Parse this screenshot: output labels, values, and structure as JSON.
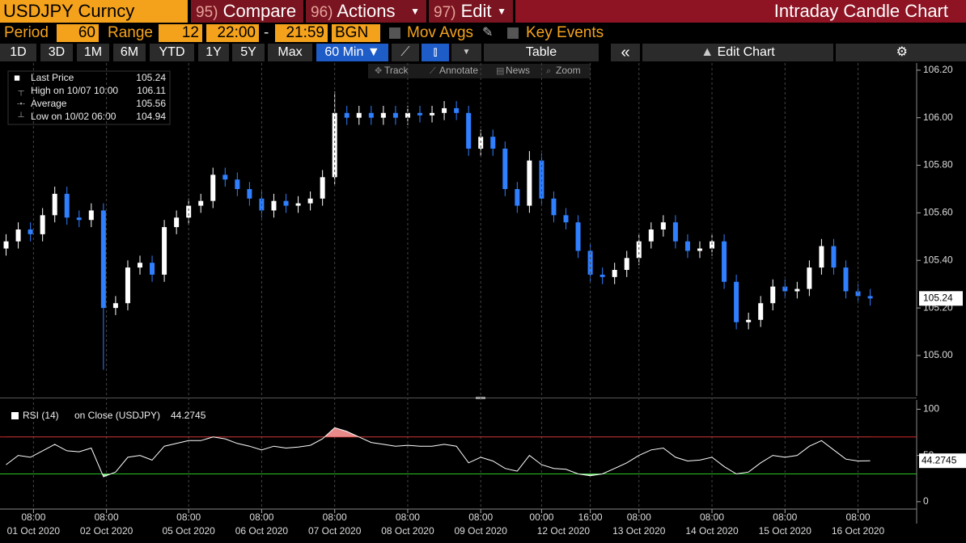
{
  "toolbar": {
    "security": "USDJPY Curncy",
    "buttons": [
      {
        "num": "95)",
        "label": "Compare"
      },
      {
        "num": "96)",
        "label": "Actions"
      },
      {
        "num": "97)",
        "label": "Edit"
      }
    ],
    "title": "Intraday Candle Chart"
  },
  "settings": {
    "period_label": "Period",
    "period": "60",
    "range_label": "Range",
    "range": "12",
    "start": "22:00",
    "dash": "-",
    "end": "21:59",
    "bgn": "BGN",
    "mov_avgs": "Mov Avgs",
    "key_events": "Key Events"
  },
  "ranges": [
    "1D",
    "3D",
    "1M",
    "6M",
    "YTD",
    "1Y",
    "5Y",
    "Max"
  ],
  "interval": "60 Min",
  "table": "Table",
  "edit_chart": "Edit Chart",
  "tools": [
    "Track",
    "Annotate",
    "News",
    "Zoom"
  ],
  "chart_data": [
    {
      "type": "candlestick",
      "legend": [
        {
          "label": "Last Price",
          "value": 105.24
        },
        {
          "label": "High on 10/07 10:00",
          "value": 106.11
        },
        {
          "label": "Average",
          "value": 105.56
        },
        {
          "label": "Low on 10/02 06:00",
          "value": 104.94
        }
      ],
      "up_color": "#ffffff",
      "down_color": "#2f7fff",
      "x": [
        2,
        6,
        10,
        14,
        18,
        22,
        26,
        30,
        34,
        38,
        42,
        46,
        50,
        54,
        58,
        62,
        66,
        70,
        74,
        78,
        82,
        86,
        90,
        94,
        98,
        102,
        106,
        110,
        114,
        118,
        122,
        126,
        130,
        134,
        138,
        142,
        146,
        150,
        154,
        158,
        162,
        166,
        170,
        174,
        178,
        182,
        186,
        190,
        194,
        198,
        202,
        206,
        210,
        214,
        218,
        222,
        226,
        230,
        234,
        238,
        242,
        246,
        250,
        254,
        258,
        262,
        266,
        270,
        274,
        278,
        282,
        286
      ],
      "open": [
        105.45,
        105.48,
        105.53,
        105.51,
        105.59,
        105.68,
        105.58,
        105.57,
        105.61,
        105.2,
        105.22,
        105.37,
        105.39,
        105.34,
        105.54,
        105.58,
        105.63,
        105.65,
        105.76,
        105.74,
        105.7,
        105.66,
        105.61,
        105.65,
        105.63,
        105.64,
        105.66,
        105.75,
        106.02,
        106.0,
        106.02,
        106.0,
        106.02,
        106.0,
        106.02,
        106.01,
        106.02,
        106.04,
        106.02,
        105.87,
        105.92,
        105.87,
        105.7,
        105.63,
        105.82,
        105.66,
        105.59,
        105.56,
        105.44,
        105.34,
        105.33,
        105.36,
        105.41,
        105.48,
        105.53,
        105.56,
        105.48,
        105.44,
        105.45,
        105.48,
        105.31,
        105.14,
        105.15,
        105.22,
        105.29,
        105.27,
        105.28,
        105.37,
        105.46,
        105.37,
        105.27,
        105.25
      ],
      "high": [
        105.51,
        105.56,
        105.56,
        105.62,
        105.71,
        105.71,
        105.61,
        105.64,
        105.64,
        105.25,
        105.4,
        105.42,
        105.42,
        105.57,
        105.61,
        105.66,
        105.68,
        105.79,
        105.79,
        105.77,
        105.73,
        105.69,
        105.68,
        105.68,
        105.67,
        105.69,
        105.78,
        106.11,
        106.05,
        106.05,
        106.05,
        106.05,
        106.05,
        106.05,
        106.05,
        106.05,
        106.07,
        106.07,
        106.05,
        105.95,
        105.95,
        105.9,
        105.73,
        105.86,
        105.85,
        105.69,
        105.62,
        105.59,
        105.47,
        105.37,
        105.39,
        105.44,
        105.51,
        105.56,
        105.59,
        105.59,
        105.51,
        105.48,
        105.51,
        105.51,
        105.34,
        105.18,
        105.25,
        105.32,
        105.32,
        105.31,
        105.4,
        105.49,
        105.49,
        105.4,
        105.3,
        105.28
      ],
      "low": [
        105.42,
        105.45,
        105.48,
        105.48,
        105.56,
        105.55,
        105.54,
        105.54,
        104.94,
        105.17,
        105.19,
        105.34,
        105.31,
        105.31,
        105.51,
        105.55,
        105.6,
        105.62,
        105.71,
        105.67,
        105.63,
        105.58,
        105.58,
        105.6,
        105.6,
        105.61,
        105.63,
        105.72,
        105.97,
        105.97,
        105.97,
        105.97,
        105.97,
        105.97,
        105.98,
        105.98,
        105.99,
        105.99,
        105.84,
        105.84,
        105.84,
        105.67,
        105.6,
        105.6,
        105.63,
        105.56,
        105.53,
        105.41,
        105.31,
        105.3,
        105.3,
        105.33,
        105.38,
        105.45,
        105.5,
        105.45,
        105.41,
        105.41,
        105.42,
        105.28,
        105.11,
        105.11,
        105.12,
        105.19,
        105.24,
        105.24,
        105.25,
        105.34,
        105.34,
        105.24,
        105.22,
        105.21
      ],
      "close": [
        105.48,
        105.53,
        105.51,
        105.59,
        105.68,
        105.58,
        105.57,
        105.61,
        105.2,
        105.22,
        105.37,
        105.39,
        105.34,
        105.54,
        105.58,
        105.63,
        105.65,
        105.76,
        105.74,
        105.7,
        105.66,
        105.61,
        105.65,
        105.63,
        105.64,
        105.66,
        105.75,
        106.02,
        106.0,
        106.02,
        106.0,
        106.02,
        106.0,
        106.02,
        106.01,
        106.02,
        106.04,
        106.02,
        105.87,
        105.92,
        105.87,
        105.7,
        105.63,
        105.82,
        105.66,
        105.59,
        105.56,
        105.44,
        105.34,
        105.33,
        105.36,
        105.41,
        105.48,
        105.53,
        105.56,
        105.48,
        105.44,
        105.45,
        105.48,
        105.31,
        105.14,
        105.15,
        105.22,
        105.29,
        105.27,
        105.28,
        105.37,
        105.46,
        105.37,
        105.27,
        105.25,
        105.24
      ],
      "xlim": [
        0,
        301
      ],
      "ylim": [
        104.83,
        106.23
      ],
      "yticks": [
        {
          "value": 106.2,
          "label": "106.20"
        },
        {
          "value": 106,
          "label": "106.00"
        },
        {
          "value": 105.8,
          "label": "105.80"
        },
        {
          "value": 105.6,
          "label": "105.60"
        },
        {
          "value": 105.4,
          "label": "105.40"
        },
        {
          "value": 105.2,
          "label": "105.20"
        },
        {
          "value": 105,
          "label": "105.00"
        }
      ]
    },
    {
      "type": "line",
      "title": "RSI (14)",
      "subtitle": "on Close (USDJPY)",
      "color": "#ffffff",
      "x": [
        2,
        6,
        10,
        14,
        18,
        22,
        26,
        30,
        34,
        38,
        42,
        46,
        50,
        54,
        58,
        62,
        66,
        70,
        74,
        78,
        82,
        86,
        90,
        94,
        98,
        102,
        106,
        110,
        114,
        118,
        122,
        126,
        130,
        134,
        138,
        142,
        146,
        150,
        154,
        158,
        162,
        166,
        170,
        174,
        178,
        182,
        186,
        190,
        194,
        198,
        202,
        206,
        210,
        214,
        218,
        222,
        226,
        230,
        234,
        238,
        242,
        246,
        250,
        254,
        258,
        262,
        266,
        270,
        274,
        278,
        282,
        286
      ],
      "values": [
        40,
        50,
        48,
        55,
        62,
        55,
        54,
        58,
        27,
        32,
        48,
        50,
        45,
        60,
        63,
        66,
        66,
        70,
        68,
        63,
        60,
        56,
        60,
        58,
        59,
        61,
        68,
        80,
        76,
        70,
        64,
        62,
        60,
        61,
        60,
        60,
        62,
        60,
        42,
        48,
        44,
        36,
        33,
        50,
        40,
        36,
        35,
        30,
        28,
        30,
        36,
        42,
        50,
        56,
        58,
        48,
        44,
        45,
        48,
        38,
        30,
        32,
        42,
        50,
        48,
        50,
        60,
        66,
        56,
        46,
        44,
        44.2745
      ],
      "levels": [
        {
          "value": 70,
          "color": "#d42a2a"
        },
        {
          "value": 30,
          "color": "#25c025"
        }
      ],
      "xlim": [
        0,
        301
      ],
      "ylim": [
        -8,
        110
      ],
      "yticks": [
        100,
        50,
        0
      ],
      "xticks": [
        {
          "value": 11,
          "label": "08:00",
          "date": "01 Oct 2020"
        },
        {
          "value": 35,
          "label": "08:00",
          "date": "02 Oct 2020"
        },
        {
          "value": 62,
          "label": "08:00",
          "date": "05 Oct 2020"
        },
        {
          "value": 86,
          "label": "08:00",
          "date": "06 Oct 2020"
        },
        {
          "value": 110,
          "label": "08:00",
          "date": "07 Oct 2020"
        },
        {
          "value": 134,
          "label": "08:00",
          "date": "08 Oct 2020"
        },
        {
          "value": 158,
          "label": "08:00",
          "date": "09 Oct 2020"
        },
        {
          "value": 178,
          "label": "00:00",
          "date": "12 Oct 2020"
        },
        {
          "value": 194,
          "label": "16:00",
          "date": null
        },
        {
          "value": 210,
          "label": "08:00",
          "date": "13 Oct 2020"
        },
        {
          "value": 234,
          "label": "08:00",
          "date": "14 Oct 2020"
        },
        {
          "value": 258,
          "label": "08:00",
          "date": "15 Oct 2020"
        },
        {
          "value": 282,
          "label": "08:00",
          "date": "16 Oct 2020"
        }
      ]
    }
  ]
}
